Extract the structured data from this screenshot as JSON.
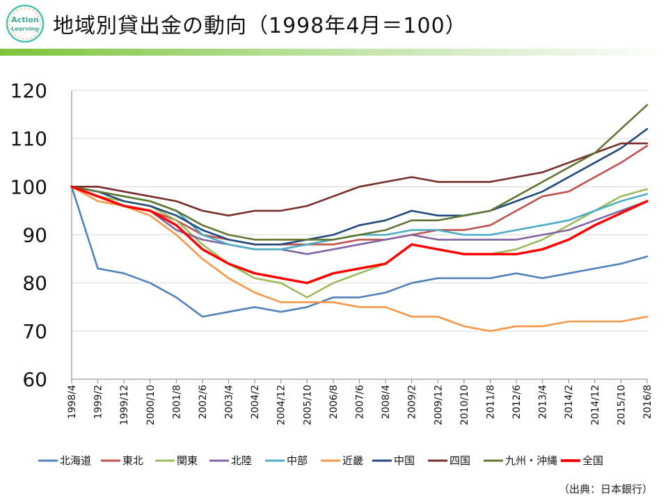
{
  "header": {
    "title": "地域別貸出金の動向（1998年4月＝100）",
    "logo_top": "Action",
    "logo_bottom": "Learning",
    "accent_color": "#7ec33a"
  },
  "source": "（出典：日本銀行）",
  "chart_data": {
    "type": "line",
    "title": "地域別貸出金の動向（1998年4月＝100）",
    "xlabel": "",
    "ylabel": "",
    "ylim": [
      60,
      120
    ],
    "yticks": [
      60,
      70,
      80,
      90,
      100,
      110,
      120
    ],
    "grid": true,
    "legend_position": "bottom",
    "x": [
      "1998/4",
      "1999/2",
      "1999/12",
      "2000/10",
      "2001/8",
      "2002/6",
      "2003/4",
      "2004/2",
      "2004/12",
      "2005/10",
      "2006/8",
      "2007/6",
      "2008/4",
      "2009/2",
      "2009/12",
      "2010/10",
      "2011/8",
      "2012/6",
      "2013/4",
      "2014/2",
      "2014/12",
      "2015/10",
      "2016/8"
    ],
    "series": [
      {
        "name": "北海道",
        "color": "#4f81bd",
        "values": [
          100,
          83,
          82,
          80,
          77,
          73,
          74,
          75,
          74,
          75,
          77,
          77,
          78,
          80,
          81,
          81,
          81,
          82,
          81,
          82,
          83,
          84,
          85.5
        ]
      },
      {
        "name": "東北",
        "color": "#c0504d",
        "values": [
          100,
          98,
          96,
          95,
          93,
          90,
          89,
          88,
          88,
          88,
          88,
          89,
          89,
          90,
          91,
          91,
          92,
          95,
          98,
          99,
          102,
          105,
          108.5
        ]
      },
      {
        "name": "関東",
        "color": "#9bbb59",
        "values": [
          100,
          98,
          97,
          96,
          93,
          88,
          84,
          81,
          80,
          77,
          80,
          82,
          84,
          88,
          87,
          86,
          86,
          87,
          89,
          92,
          95,
          98,
          99.5
        ]
      },
      {
        "name": "北陸",
        "color": "#8064a2",
        "values": [
          100,
          98,
          96,
          95,
          91,
          89,
          88,
          87,
          87,
          86,
          87,
          88,
          89,
          90,
          89,
          89,
          89,
          89,
          90,
          91,
          93,
          95,
          97
        ]
      },
      {
        "name": "中部",
        "color": "#4bacc6",
        "values": [
          100,
          99,
          98,
          97,
          95,
          90,
          88,
          87,
          87,
          88,
          89,
          90,
          90,
          91,
          91,
          90,
          90,
          91,
          92,
          93,
          95,
          97,
          98.5
        ]
      },
      {
        "name": "近畿",
        "color": "#f79646",
        "values": [
          100,
          97,
          96,
          94,
          90,
          85,
          81,
          78,
          76,
          76,
          76,
          75,
          75,
          73,
          73,
          71,
          70,
          71,
          71,
          72,
          72,
          72,
          73
        ]
      },
      {
        "name": "中国",
        "color": "#1f497d",
        "values": [
          100,
          99,
          97,
          96,
          94,
          91,
          89,
          88,
          88,
          89,
          90,
          92,
          93,
          95,
          94,
          94,
          95,
          97,
          99,
          102,
          105,
          108,
          112
        ]
      },
      {
        "name": "四国",
        "color": "#772c2a",
        "values": [
          100,
          100,
          99,
          98,
          97,
          95,
          94,
          95,
          95,
          96,
          98,
          100,
          101,
          102,
          101,
          101,
          101,
          102,
          103,
          105,
          107,
          109,
          109
        ]
      },
      {
        "name": "九州・沖縄",
        "color": "#5f7530",
        "values": [
          100,
          99,
          98,
          97,
          95,
          92,
          90,
          89,
          89,
          89,
          89,
          90,
          91,
          93,
          93,
          94,
          95,
          98,
          101,
          104,
          107,
          112,
          117
        ]
      },
      {
        "name": "全国",
        "color": "#ff0000",
        "values": [
          100,
          98,
          96,
          95,
          92,
          87,
          84,
          82,
          81,
          80,
          82,
          83,
          84,
          88,
          87,
          86,
          86,
          86,
          87,
          89,
          92,
          94.5,
          97
        ]
      }
    ]
  }
}
